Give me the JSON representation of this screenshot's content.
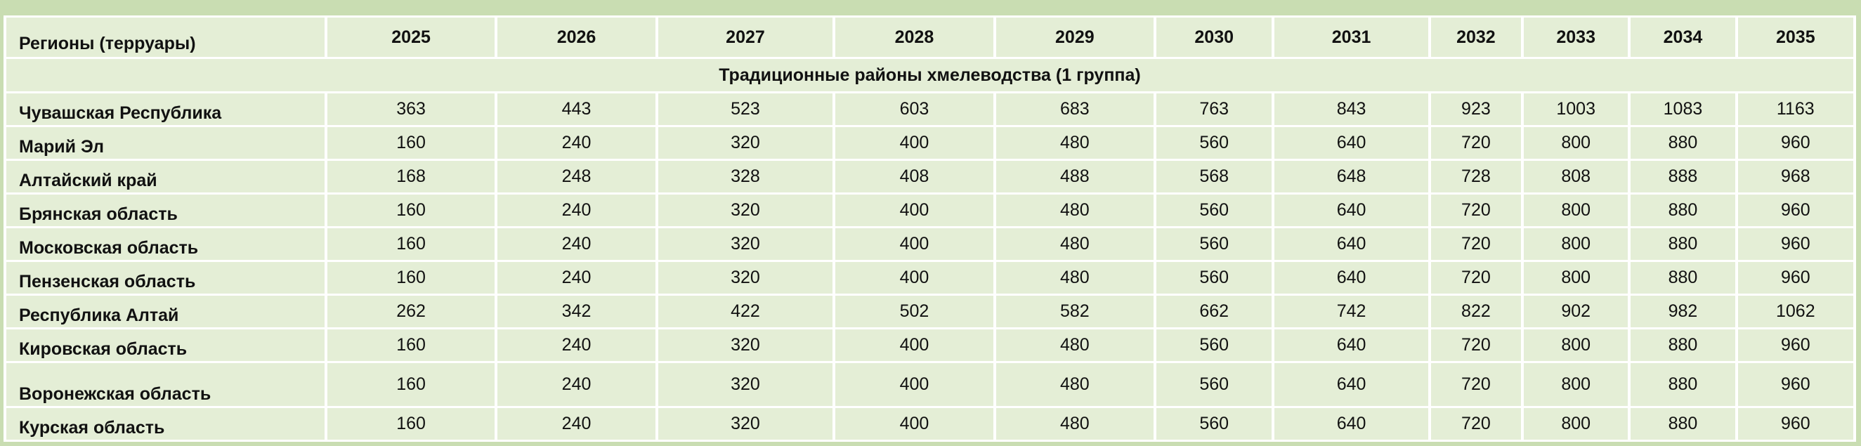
{
  "table": {
    "region_header": "Регионы (терруары)",
    "years": [
      "2025",
      "2026",
      "2027",
      "2028",
      "2029",
      "2030",
      "2031",
      "2032",
      "2033",
      "2034",
      "2035"
    ],
    "group_label": "Традиционные районы хмелеводства (1 группа)",
    "rows": [
      {
        "region": "Чувашская Республика",
        "values": [
          "363",
          "443",
          "523",
          "603",
          "683",
          "763",
          "843",
          "923",
          "1003",
          "1083",
          "1163"
        ]
      },
      {
        "region": "Марий Эл",
        "values": [
          "160",
          "240",
          "320",
          "400",
          "480",
          "560",
          "640",
          "720",
          "800",
          "880",
          "960"
        ]
      },
      {
        "region": "Алтайский край",
        "values": [
          "168",
          "248",
          "328",
          "408",
          "488",
          "568",
          "648",
          "728",
          "808",
          "888",
          "968"
        ]
      },
      {
        "region": "Брянская область",
        "values": [
          "160",
          "240",
          "320",
          "400",
          "480",
          "560",
          "640",
          "720",
          "800",
          "880",
          "960"
        ]
      },
      {
        "region": "Московская область",
        "values": [
          "160",
          "240",
          "320",
          "400",
          "480",
          "560",
          "640",
          "720",
          "800",
          "880",
          "960"
        ]
      },
      {
        "region": "Пензенская область",
        "values": [
          "160",
          "240",
          "320",
          "400",
          "480",
          "560",
          "640",
          "720",
          "800",
          "880",
          "960"
        ]
      },
      {
        "region": "Республика Алтай",
        "values": [
          "262",
          "342",
          "422",
          "502",
          "582",
          "662",
          "742",
          "822",
          "902",
          "982",
          "1062"
        ]
      },
      {
        "region": "Кировская область",
        "values": [
          "160",
          "240",
          "320",
          "400",
          "480",
          "560",
          "640",
          "720",
          "800",
          "880",
          "960"
        ]
      },
      {
        "region": "Воронежская область",
        "values": [
          "160",
          "240",
          "320",
          "400",
          "480",
          "560",
          "640",
          "720",
          "800",
          "880",
          "960"
        ]
      },
      {
        "region": "Курская область",
        "values": [
          "160",
          "240",
          "320",
          "400",
          "480",
          "560",
          "640",
          "720",
          "800",
          "880",
          "960"
        ]
      }
    ]
  },
  "colors": {
    "background": "#c9ddb2",
    "cell": "#e4eed6",
    "grid": "#ffffff"
  }
}
